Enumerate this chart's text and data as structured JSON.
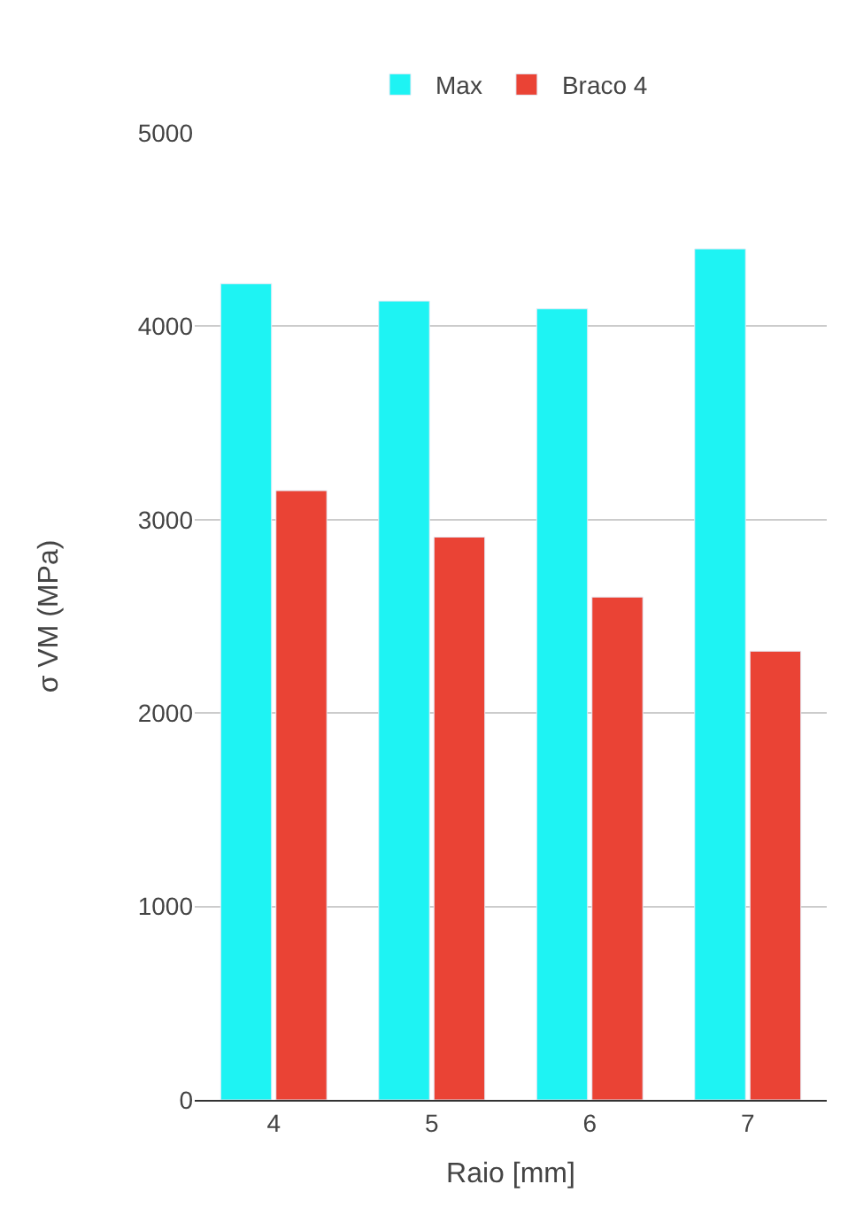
{
  "chart_data": {
    "type": "bar",
    "xlabel": "Raio [mm]",
    "ylabel": "σ VM (MPa)",
    "categories": [
      "4",
      "5",
      "6",
      "7"
    ],
    "series": [
      {
        "name": "Max",
        "color": "#1ef3f3",
        "values": [
          4220,
          4130,
          4090,
          4400
        ]
      },
      {
        "name": "Braco 4",
        "color": "#ea4335",
        "values": [
          3150,
          2910,
          2600,
          2320
        ]
      }
    ],
    "ylim": [
      0,
      5000
    ],
    "yticks": [
      0,
      1000,
      2000,
      3000,
      4000,
      5000
    ],
    "grid": "y",
    "legend": "top"
  }
}
